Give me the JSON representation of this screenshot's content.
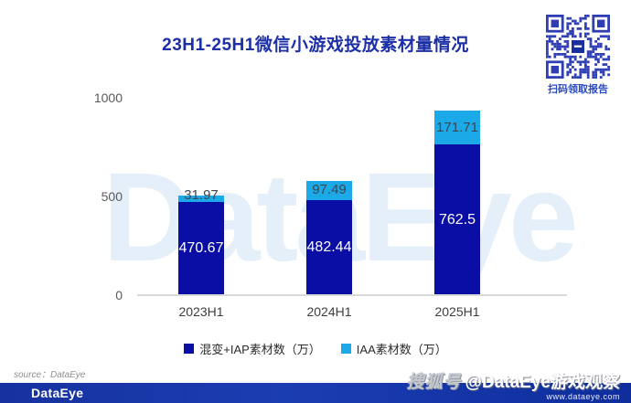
{
  "page": {
    "title": "23H1-25H1微信小游戏投放素材量情况"
  },
  "qr": {
    "caption": "扫码领取报告",
    "color": "#2F3EB5"
  },
  "chart_data": {
    "type": "bar",
    "stacked": true,
    "title": "23H1-25H1微信小游戏投放素材量情况",
    "categories": [
      "2023H1",
      "2024H1",
      "2025H1"
    ],
    "series": [
      {
        "name": "混变+IAP素材数（万）",
        "color": "#0B0EA4",
        "label_color": "#FFFFFF",
        "values": [
          470.67,
          482.44,
          762.5
        ]
      },
      {
        "name": "IAA素材数（万）",
        "color": "#1CA9E8",
        "label_color": "#3E464E",
        "values": [
          31.97,
          97.49,
          171.71
        ]
      }
    ],
    "xlabel": "",
    "ylabel": "",
    "ylim": [
      0,
      1000
    ],
    "yticks": [
      0,
      500,
      1000
    ],
    "grid": false,
    "legend_position": "bottom",
    "background_watermark": "DataEye"
  },
  "source_note": "source：DataEye",
  "footer": {
    "logo": "DataEye",
    "platform_badge": "搜狐号",
    "handle": "@DataEye游戏观察",
    "website": "www.dataeye.com"
  },
  "colors": {
    "title": "#1D2FA6",
    "bar_dark": "#0B0EA4",
    "bar_light": "#1CA9E8",
    "footer_bar": "#14319F",
    "axis_line": "#D9D9D9"
  }
}
